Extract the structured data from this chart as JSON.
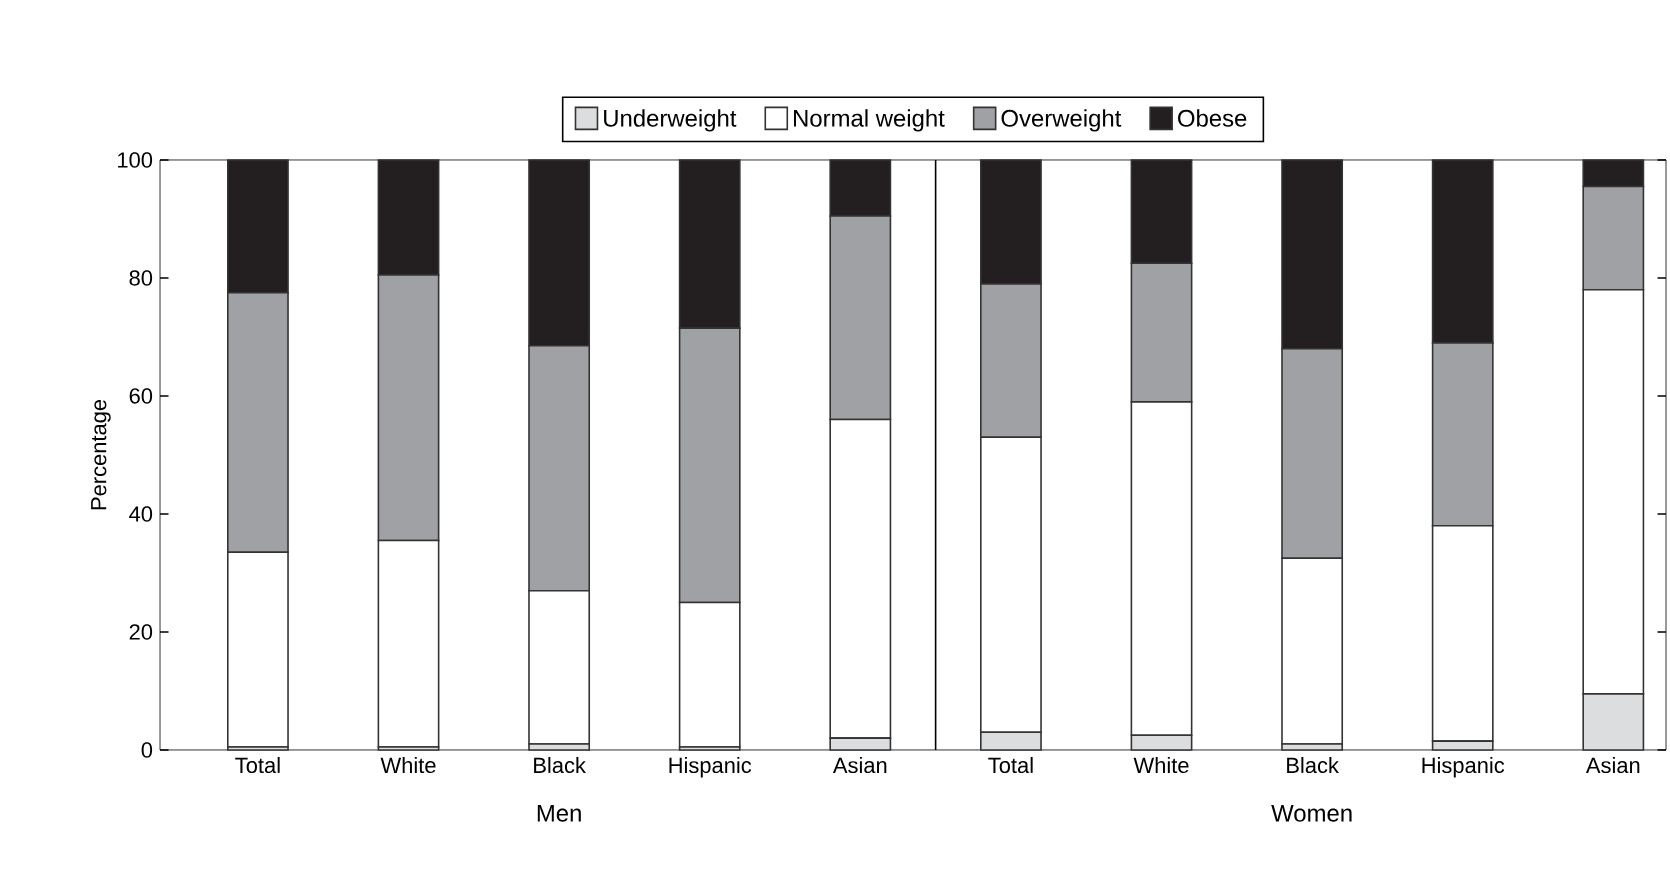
{
  "chart_data": {
    "type": "bar",
    "stacked": true,
    "ylabel": "Percentage",
    "categories": [
      "Total",
      "White",
      "Black",
      "Hispanic",
      "Asian",
      "Total",
      "White",
      "Black",
      "Hispanic",
      "Asian"
    ],
    "series": [
      {
        "name": "Underweight",
        "color": "#dcdddf",
        "values": [
          0.5,
          0.5,
          1,
          0.5,
          2,
          3,
          2.5,
          1,
          1.5,
          9.5
        ]
      },
      {
        "name": "Normal weight",
        "color": "#ffffff",
        "values": [
          33,
          35,
          26,
          24.5,
          54,
          50,
          56.5,
          31.5,
          36.5,
          68.5
        ]
      },
      {
        "name": "Overweight",
        "color": "#a0a1a4",
        "values": [
          44,
          45,
          41.5,
          46.5,
          34.5,
          26,
          23.5,
          35.5,
          31,
          17.5
        ]
      },
      {
        "name": "Obese",
        "color": "#231f20",
        "values": [
          22.5,
          19.5,
          31.5,
          28.5,
          9.5,
          21,
          17.5,
          32,
          31,
          4.5
        ]
      }
    ],
    "ylim": [
      0,
      100
    ],
    "yticks": [
      0,
      20,
      40,
      60,
      80,
      100
    ],
    "legend": "top",
    "annotations": [
      "Men",
      "Women"
    ]
  }
}
